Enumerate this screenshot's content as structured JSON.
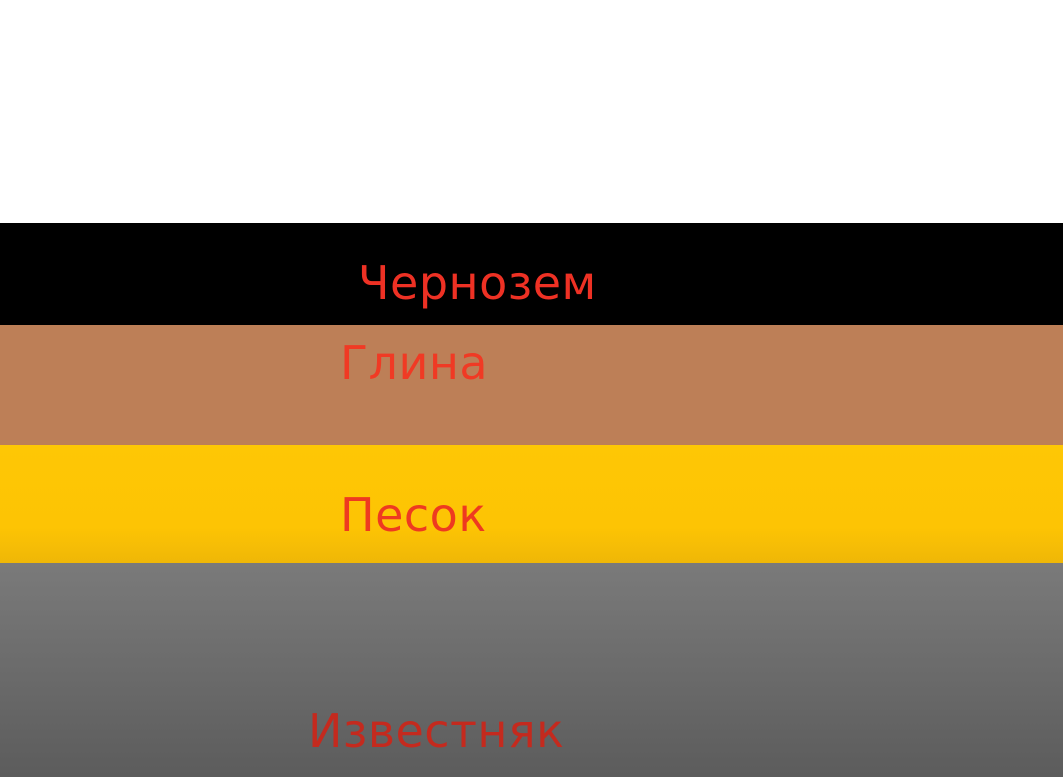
{
  "layers": [
    {
      "label": "Чернозем",
      "color": "#000000"
    },
    {
      "label": "Глина",
      "color": "#bd7f57"
    },
    {
      "label": "Песок",
      "color": "#fec705"
    },
    {
      "label": "Известняк",
      "color": "#6b6b6b"
    }
  ],
  "label_color": "#ee3124"
}
